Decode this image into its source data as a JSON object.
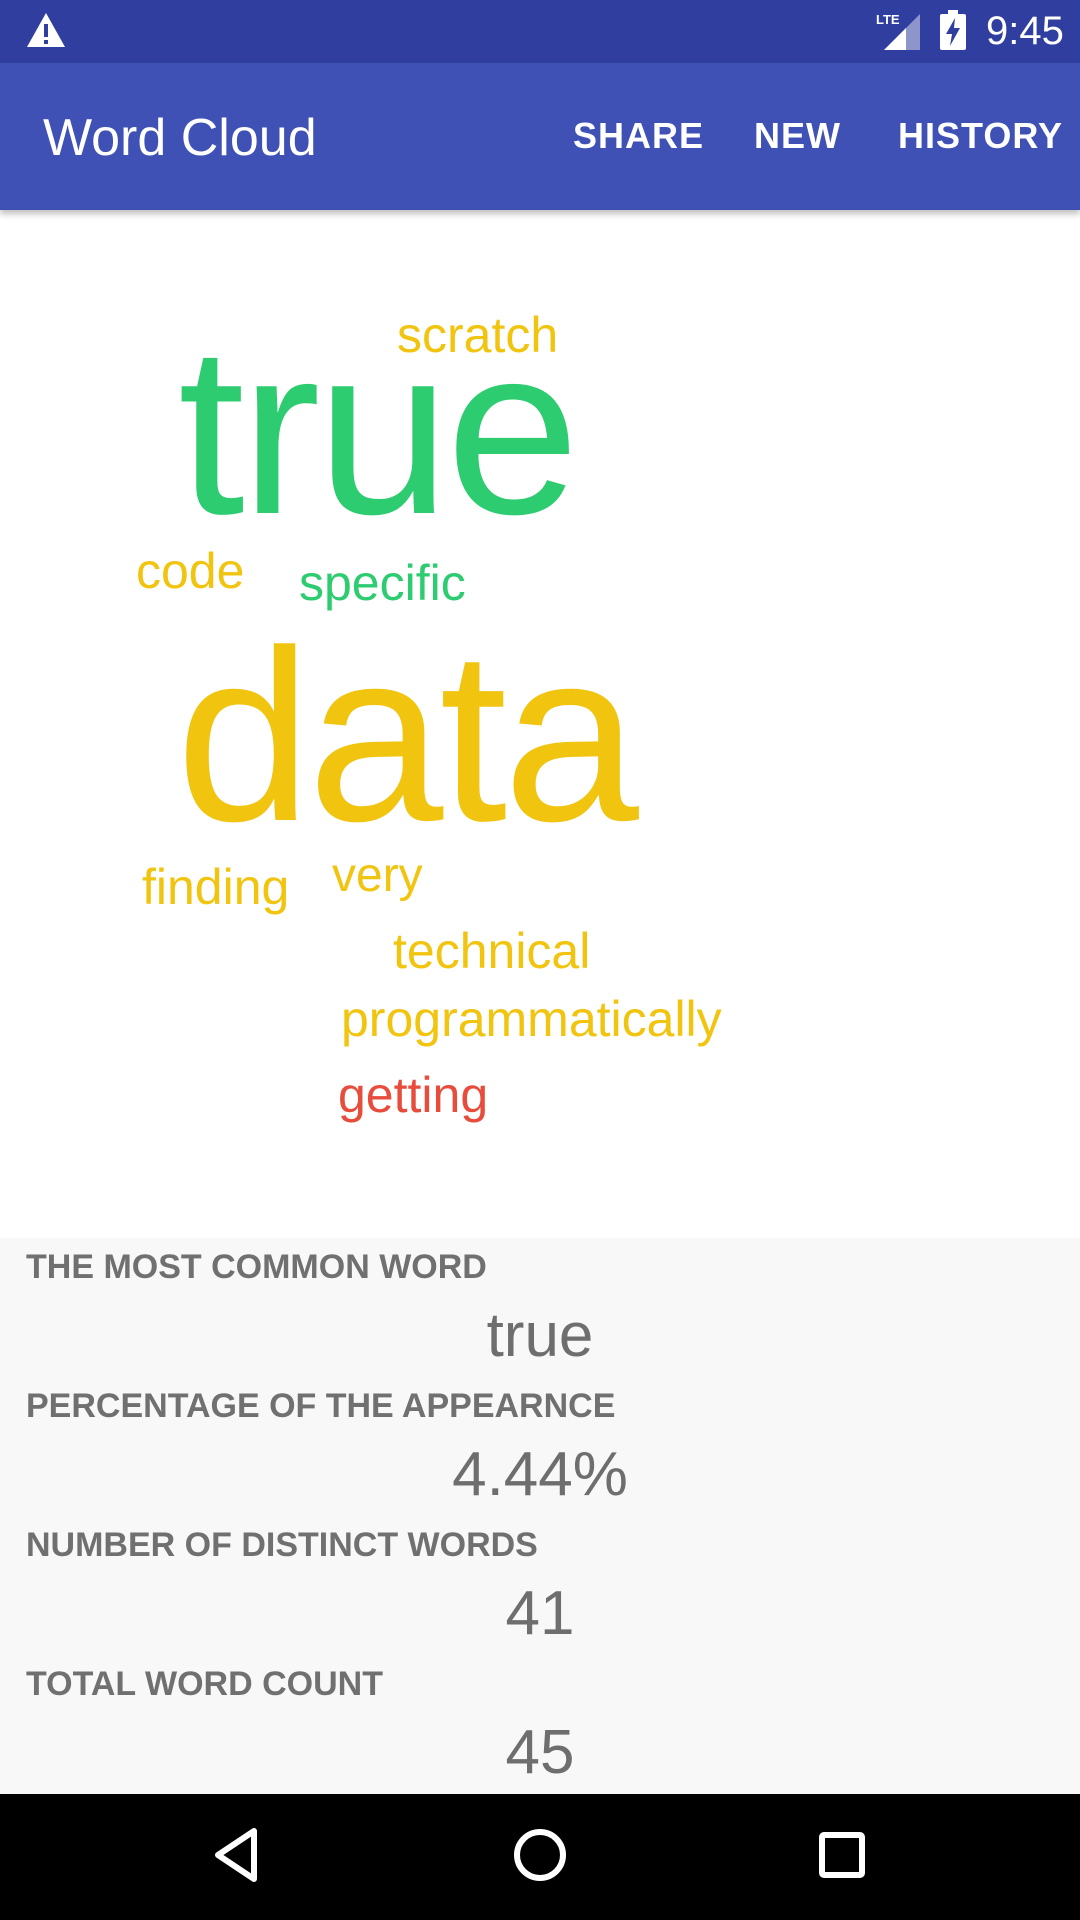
{
  "status_bar": {
    "time": "9:45",
    "network": "LTE",
    "icons": [
      "warning-icon",
      "lte-signal-icon",
      "battery-charging-icon"
    ]
  },
  "app_bar": {
    "title": "Word Cloud",
    "actions": [
      "SHARE",
      "NEW",
      "HISTORY"
    ]
  },
  "word_cloud": {
    "colors": {
      "green": "#2ecc71",
      "yellow": "#f1c40f",
      "red": "#e74c3c"
    },
    "words": [
      {
        "text": "scratch",
        "color": "yellow"
      },
      {
        "text": "true",
        "color": "green"
      },
      {
        "text": "code",
        "color": "yellow"
      },
      {
        "text": "specific",
        "color": "green"
      },
      {
        "text": "data",
        "color": "yellow"
      },
      {
        "text": "finding",
        "color": "yellow"
      },
      {
        "text": "very",
        "color": "yellow"
      },
      {
        "text": "technical",
        "color": "yellow"
      },
      {
        "text": "programmatically",
        "color": "yellow"
      },
      {
        "text": "getting",
        "color": "red"
      }
    ]
  },
  "stats": [
    {
      "label": "THE MOST COMMON WORD",
      "value": "true"
    },
    {
      "label": "PERCENTAGE OF THE APPEARNCE",
      "value": "4.44%"
    },
    {
      "label": "NUMBER OF DISTINCT WORDS",
      "value": "41"
    },
    {
      "label": "TOTAL WORD COUNT",
      "value": "45"
    }
  ],
  "nav_bar": {
    "buttons": [
      "back-icon",
      "home-icon",
      "recents-icon"
    ]
  }
}
